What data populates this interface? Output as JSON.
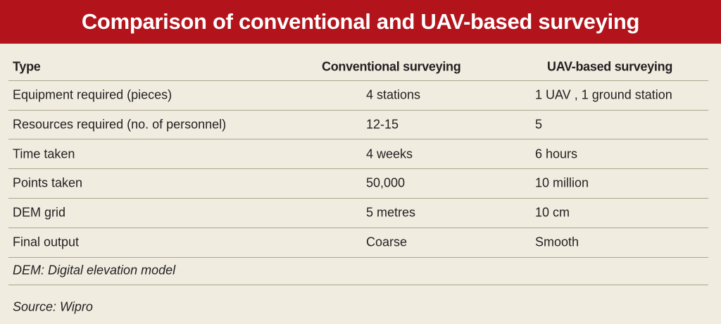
{
  "header": {
    "title": "Comparison of conventional and UAV-based surveying"
  },
  "table": {
    "columns": [
      "Type",
      "Conventional surveying",
      "UAV-based surveying"
    ],
    "rows": [
      [
        "Equipment required (pieces)",
        "4 stations",
        "1 UAV , 1 ground station"
      ],
      [
        "Resources required (no. of personnel)",
        "12-15",
        "5"
      ],
      [
        "Time taken",
        "4 weeks",
        "6 hours"
      ],
      [
        "Points taken",
        "50,000",
        "10 million"
      ],
      [
        "DEM grid",
        "5 metres",
        "10 cm"
      ],
      [
        "Final output",
        "Coarse",
        "Smooth"
      ]
    ]
  },
  "notes": {
    "footnote": "DEM: Digital elevation model",
    "source": "Source: Wipro"
  }
}
